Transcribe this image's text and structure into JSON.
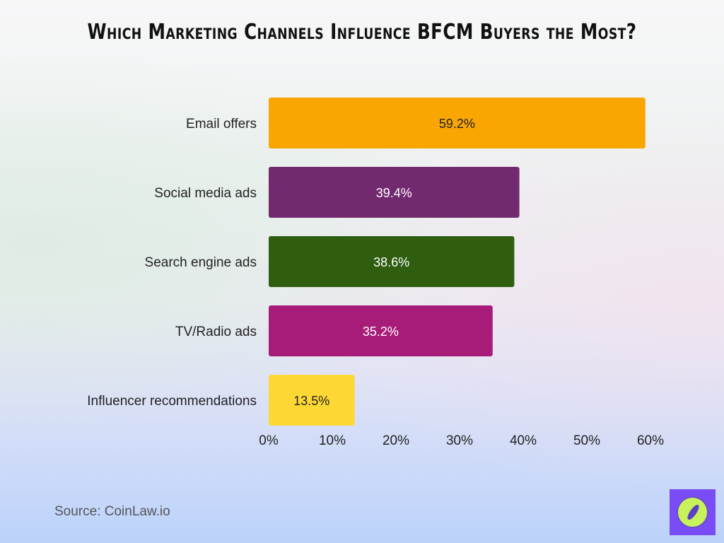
{
  "chart_data": {
    "type": "bar",
    "orientation": "horizontal",
    "title": "Which Marketing Channels Influence BFCM Buyers the Most?",
    "categories": [
      "Email offers",
      "Social media ads",
      "Search engine ads",
      "TV/Radio ads",
      "Influencer recommendations"
    ],
    "values": [
      59.2,
      39.4,
      38.6,
      35.2,
      13.5
    ],
    "value_labels": [
      "59.2%",
      "39.4%",
      "38.6%",
      "35.2%",
      "13.5%"
    ],
    "colors": [
      "#f9a602",
      "#722a6f",
      "#2f5e10",
      "#a81c79",
      "#fdd835"
    ],
    "label_colors": [
      "#222222",
      "#ffffff",
      "#ffffff",
      "#ffffff",
      "#222222"
    ],
    "xlim": [
      0,
      60
    ],
    "xticks": [
      0,
      10,
      20,
      30,
      40,
      50,
      60
    ],
    "xtick_labels": [
      "0%",
      "10%",
      "20%",
      "30%",
      "40%",
      "50%",
      "60%"
    ],
    "xlabel": "",
    "ylabel": "",
    "grid": false,
    "legend": "none"
  },
  "source": "Source: CoinLaw.io",
  "logo": {
    "icon": "compass-icon"
  }
}
